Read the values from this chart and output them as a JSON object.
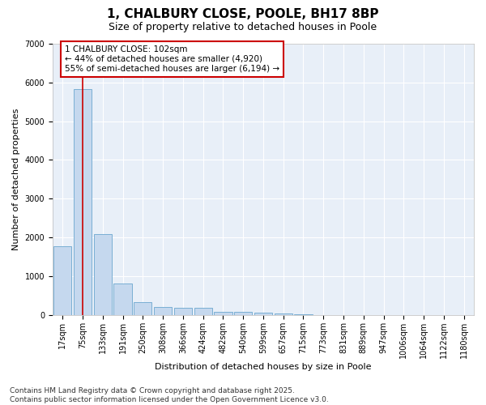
{
  "title_line1": "1, CHALBURY CLOSE, POOLE, BH17 8BP",
  "title_line2": "Size of property relative to detached houses in Poole",
  "xlabel": "Distribution of detached houses by size in Poole",
  "ylabel": "Number of detached properties",
  "categories": [
    "17sqm",
    "75sqm",
    "133sqm",
    "191sqm",
    "250sqm",
    "308sqm",
    "366sqm",
    "424sqm",
    "482sqm",
    "540sqm",
    "599sqm",
    "657sqm",
    "715sqm",
    "773sqm",
    "831sqm",
    "889sqm",
    "947sqm",
    "1006sqm",
    "1064sqm",
    "1122sqm",
    "1180sqm"
  ],
  "values": [
    1780,
    5830,
    2080,
    820,
    340,
    200,
    180,
    180,
    90,
    70,
    50,
    30,
    10,
    5,
    5,
    5,
    5,
    5,
    5,
    5,
    5
  ],
  "bar_color": "#c5d8ee",
  "bar_edge_color": "#7aafd4",
  "vline_x": 1,
  "vline_color": "#cc0000",
  "annotation_text": "1 CHALBURY CLOSE: 102sqm\n← 44% of detached houses are smaller (4,920)\n55% of semi-detached houses are larger (6,194) →",
  "annotation_box_color": "#cc0000",
  "ylim": [
    0,
    7000
  ],
  "yticks": [
    0,
    1000,
    2000,
    3000,
    4000,
    5000,
    6000,
    7000
  ],
  "footnote": "Contains HM Land Registry data © Crown copyright and database right 2025.\nContains public sector information licensed under the Open Government Licence v3.0.",
  "background_color": "#e8eff8",
  "grid_color": "#ffffff",
  "fig_background": "#ffffff",
  "title_fontsize": 11,
  "subtitle_fontsize": 9,
  "axis_label_fontsize": 8,
  "tick_fontsize": 7,
  "annotation_fontsize": 7.5,
  "footnote_fontsize": 6.5
}
